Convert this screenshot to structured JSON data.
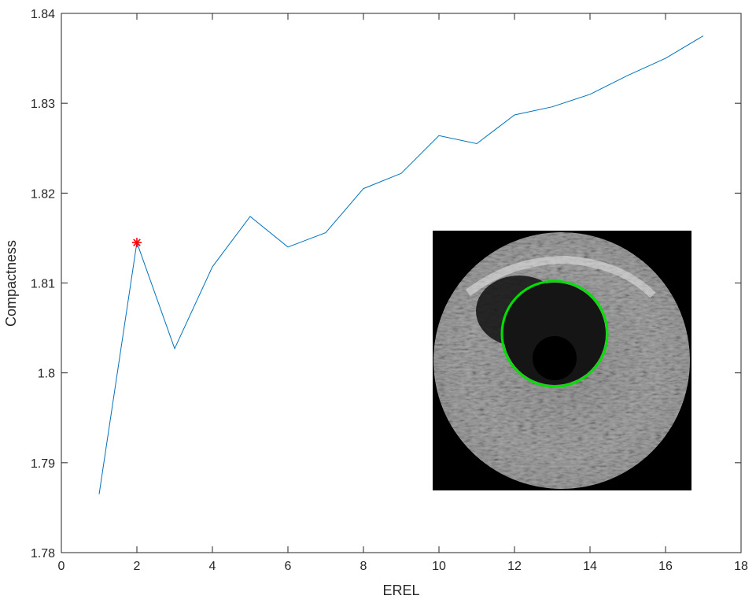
{
  "chart_data": {
    "type": "line",
    "xlabel": "EREL",
    "ylabel": "Compactness",
    "xlim": [
      0,
      18
    ],
    "ylim": [
      1.78,
      1.84
    ],
    "xticks": [
      0,
      2,
      4,
      6,
      8,
      10,
      12,
      14,
      16,
      18
    ],
    "yticks": [
      1.78,
      1.79,
      1.8,
      1.81,
      1.82,
      1.83,
      1.84
    ],
    "ytick_labels": [
      "1.78",
      "1.79",
      "1.8",
      "1.81",
      "1.82",
      "1.83",
      "1.84"
    ],
    "grid": false,
    "series": [
      {
        "x": [
          1,
          2,
          3,
          4,
          5,
          6,
          7,
          8,
          9,
          10,
          11,
          12,
          13,
          14,
          15,
          16,
          17
        ],
        "values": [
          1.7865,
          1.8145,
          1.8027,
          1.8118,
          1.8174,
          1.814,
          1.8156,
          1.8205,
          1.8222,
          1.8264,
          1.8255,
          1.8287,
          1.8296,
          1.831,
          1.8331,
          1.835,
          1.8375
        ],
        "color": "#0072BD"
      }
    ],
    "highlight_point": {
      "x": 2,
      "y": 1.8145,
      "marker": "asterisk",
      "color": "#ff0000"
    },
    "inset": {
      "type": "ultrasound-image",
      "overlay_color": "#00ff00",
      "overlay_shape": "circle"
    }
  }
}
